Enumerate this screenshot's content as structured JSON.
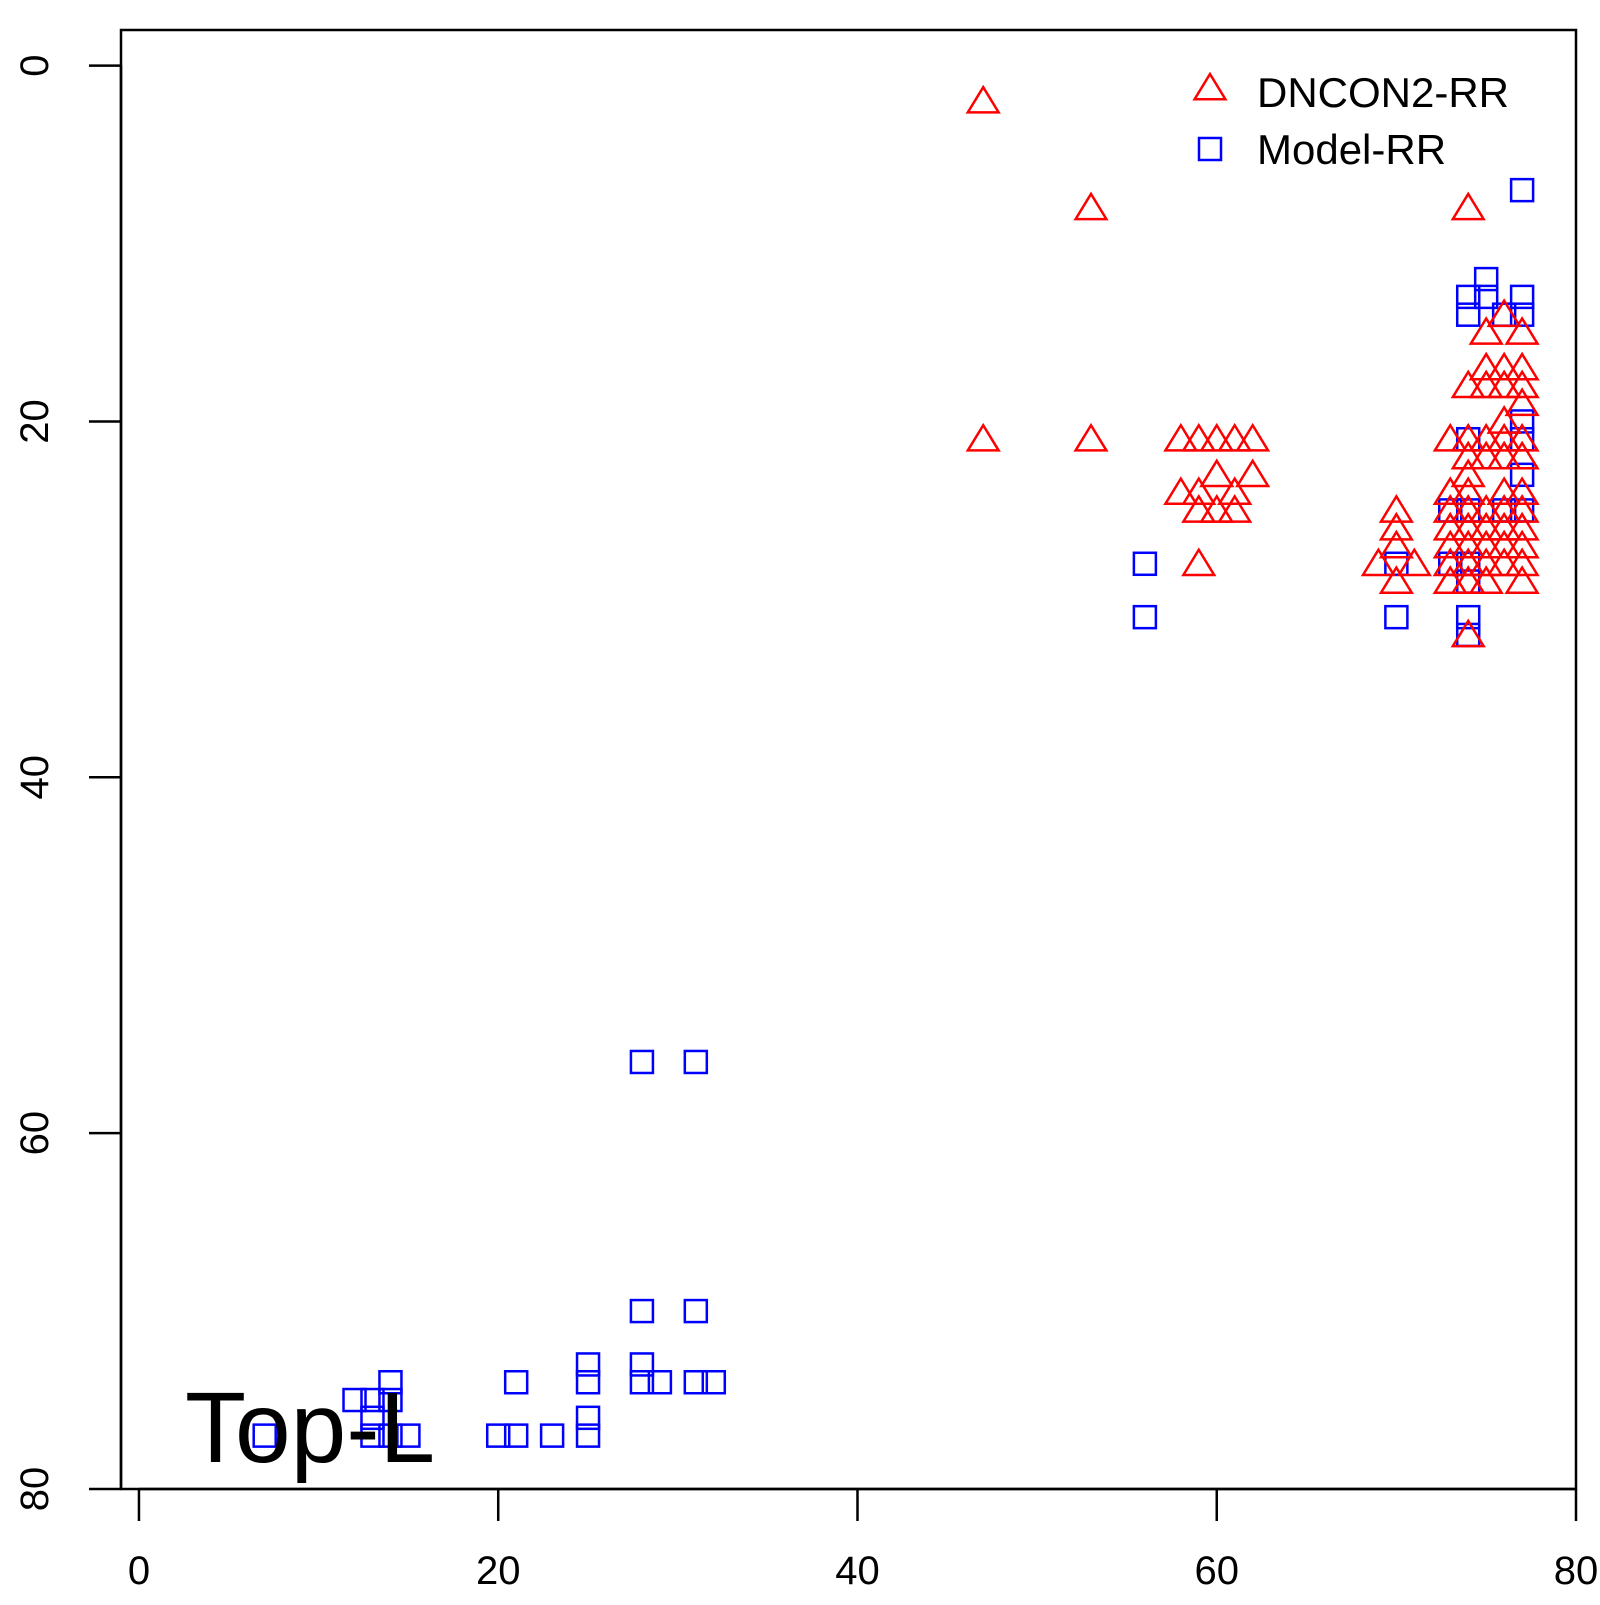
{
  "chart_data": {
    "type": "scatter",
    "title": "",
    "xlabel": "",
    "ylabel": "",
    "xlim": [
      -1,
      80
    ],
    "ylim": [
      80,
      -2
    ],
    "y_reversed": true,
    "x_ticks": [
      0,
      20,
      40,
      60,
      80
    ],
    "y_ticks": [
      0,
      20,
      40,
      60,
      80
    ],
    "x_tick_labels": [
      "0",
      "20",
      "40",
      "60",
      "80"
    ],
    "y_tick_labels": [
      "0",
      "20",
      "40",
      "60",
      "80"
    ],
    "grid": false,
    "legend_position": "top-right",
    "annotation": "Top-L",
    "series": [
      {
        "name": "DNCON2-RR",
        "marker": "triangle",
        "color": "#ff0000",
        "points": [
          [
            47,
            2
          ],
          [
            53,
            8
          ],
          [
            74,
            8
          ],
          [
            47,
            21
          ],
          [
            53,
            21
          ],
          [
            58,
            21
          ],
          [
            59,
            21
          ],
          [
            60,
            21
          ],
          [
            61,
            21
          ],
          [
            62,
            21
          ],
          [
            60,
            23
          ],
          [
            62,
            23
          ],
          [
            58,
            24
          ],
          [
            59,
            24
          ],
          [
            61,
            24
          ],
          [
            59,
            25
          ],
          [
            60,
            25
          ],
          [
            61,
            25
          ],
          [
            59,
            28
          ],
          [
            70,
            25
          ],
          [
            70,
            26
          ],
          [
            70,
            27
          ],
          [
            69,
            28
          ],
          [
            71,
            28
          ],
          [
            70,
            29
          ],
          [
            76,
            14
          ],
          [
            75,
            15
          ],
          [
            77,
            15
          ],
          [
            75,
            17
          ],
          [
            76,
            17
          ],
          [
            77,
            17
          ],
          [
            74,
            18
          ],
          [
            75,
            18
          ],
          [
            76,
            18
          ],
          [
            77,
            18
          ],
          [
            77,
            19
          ],
          [
            76,
            20
          ],
          [
            73,
            21
          ],
          [
            74,
            21
          ],
          [
            75,
            21
          ],
          [
            76,
            21
          ],
          [
            77,
            21
          ],
          [
            74,
            22
          ],
          [
            75,
            22
          ],
          [
            76,
            22
          ],
          [
            77,
            22
          ],
          [
            74,
            23
          ],
          [
            73,
            24
          ],
          [
            74,
            24
          ],
          [
            76,
            24
          ],
          [
            77,
            24
          ],
          [
            73,
            25
          ],
          [
            74,
            25
          ],
          [
            75,
            25
          ],
          [
            76,
            25
          ],
          [
            77,
            25
          ],
          [
            73,
            26
          ],
          [
            74,
            26
          ],
          [
            75,
            26
          ],
          [
            76,
            26
          ],
          [
            77,
            26
          ],
          [
            73,
            27
          ],
          [
            74,
            27
          ],
          [
            75,
            27
          ],
          [
            76,
            27
          ],
          [
            77,
            27
          ],
          [
            73,
            28
          ],
          [
            74,
            28
          ],
          [
            75,
            28
          ],
          [
            76,
            28
          ],
          [
            77,
            28
          ],
          [
            73,
            29
          ],
          [
            74,
            29
          ],
          [
            75,
            29
          ],
          [
            77,
            29
          ],
          [
            74,
            32
          ]
        ]
      },
      {
        "name": "Model-RR",
        "marker": "square",
        "color": "#0000ff",
        "points": [
          [
            77,
            7
          ],
          [
            75,
            12
          ],
          [
            74,
            13
          ],
          [
            75,
            13
          ],
          [
            77,
            13
          ],
          [
            74,
            14
          ],
          [
            76,
            14
          ],
          [
            77,
            14
          ],
          [
            77,
            20
          ],
          [
            74,
            21
          ],
          [
            77,
            21
          ],
          [
            77,
            23
          ],
          [
            73,
            25
          ],
          [
            74,
            25
          ],
          [
            76,
            25
          ],
          [
            77,
            25
          ],
          [
            73,
            28
          ],
          [
            74,
            28
          ],
          [
            74,
            29
          ],
          [
            70,
            28
          ],
          [
            56,
            28
          ],
          [
            56,
            31
          ],
          [
            70,
            31
          ],
          [
            74,
            31
          ],
          [
            74,
            32
          ],
          [
            28,
            56
          ],
          [
            31,
            56
          ],
          [
            28,
            70
          ],
          [
            31,
            70
          ],
          [
            25,
            73
          ],
          [
            28,
            73
          ],
          [
            14,
            74
          ],
          [
            21,
            74
          ],
          [
            25,
            74
          ],
          [
            28,
            74
          ],
          [
            29,
            74
          ],
          [
            31,
            74
          ],
          [
            32,
            74
          ],
          [
            12,
            75
          ],
          [
            13,
            75
          ],
          [
            14,
            75
          ],
          [
            13,
            76
          ],
          [
            25,
            76
          ],
          [
            7,
            77
          ],
          [
            13,
            77
          ],
          [
            14,
            77
          ],
          [
            15,
            77
          ],
          [
            20,
            77
          ],
          [
            21,
            77
          ],
          [
            23,
            77
          ],
          [
            25,
            77
          ]
        ]
      }
    ]
  }
}
